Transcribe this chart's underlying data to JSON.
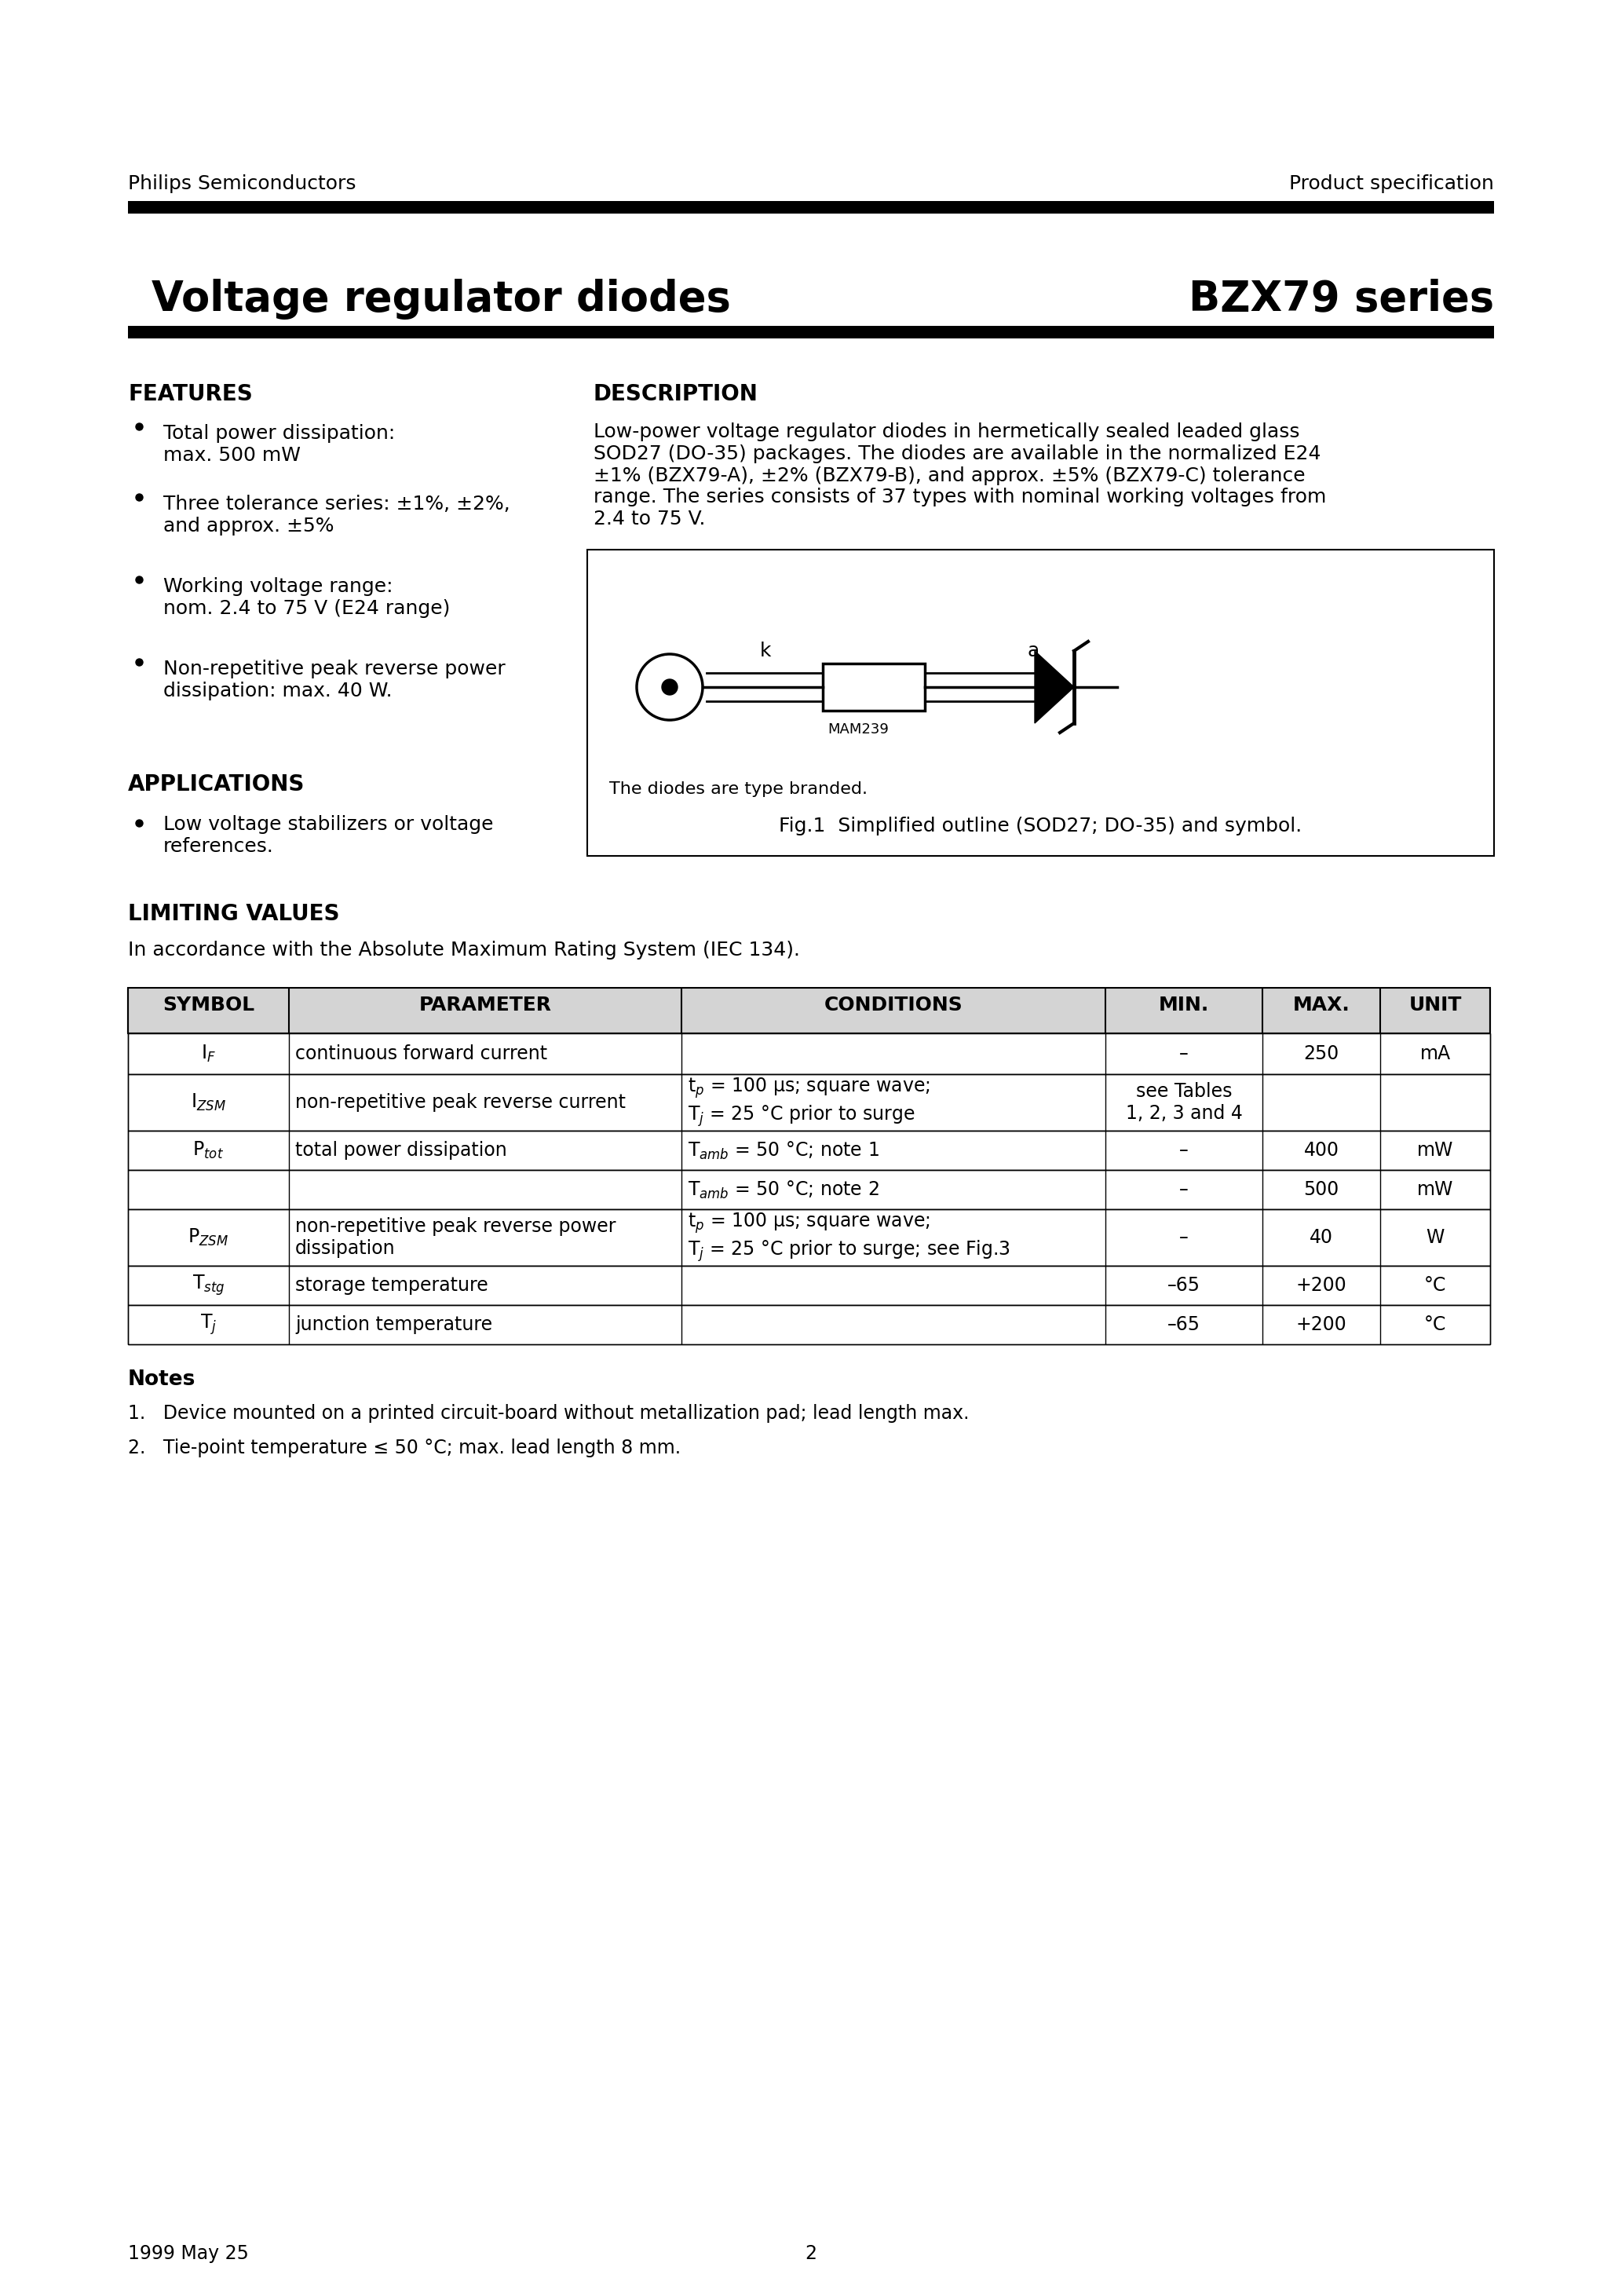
{
  "header_left": "Philips Semiconductors",
  "header_right": "Product specification",
  "page_title_left": "Voltage regulator diodes",
  "page_title_right": "BZX79 series",
  "features_title": "FEATURES",
  "feat1": "Total power dissipation:\nmax. 500 mW",
  "feat2": "Three tolerance series: ±1%, ±2%,\nand approx. ±5%",
  "feat3": "Working voltage range:\nnom. 2.4 to 75 V (E24 range)",
  "feat4": "Non-repetitive peak reverse power\ndissipation: max. 40 W.",
  "apps_title": "APPLICATIONS",
  "app1": "Low voltage stabilizers or voltage\nreferences.",
  "desc_title": "DESCRIPTION",
  "desc_text": "Low-power voltage regulator diodes in hermetically sealed leaded glass\nSOD27 (DO-35) packages. The diodes are available in the normalized E24\n±1% (BZX79-A), ±2% (BZX79-B), and approx. ±5% (BZX79-C) tolerance\nrange. The series consists of 37 types with nominal working voltages from\n2.4 to 75 V.",
  "fig_note": "The diodes are type branded.",
  "fig_caption": "Fig.1  Simplified outline (SOD27; DO-35) and symbol.",
  "lv_title": "LIMITING VALUES",
  "lv_sub": "In accordance with the Absolute Maximum Rating System (IEC 134).",
  "notes_title": "Notes",
  "note1": "1.   Device mounted on a printed circuit-board without metallization pad; lead length max.",
  "note2": "2.   Tie-point temperature ≤ 50 °C; max. lead length 8 mm.",
  "footer_left": "1999 May 25",
  "footer_page": "2",
  "sym_IF": "I$_F$",
  "sym_IZSM": "I$_{ZSM}$",
  "sym_Ptot": "P$_{tot}$",
  "sym_PZSM": "P$_{ZSM}$",
  "sym_Tstg": "T$_{stg}$",
  "sym_Tj": "T$_j$",
  "cond_tp": "t$_p$ = 100 μs; square wave;",
  "cond_Tj25": "T$_j$ = 25 °C prior to surge",
  "cond_Tamb1": "T$_{amb}$ = 50 °C; note 1",
  "cond_Tamb2": "T$_{amb}$ = 50 °C; note 2",
  "cond_Tj25fig": "T$_j$ = 25 °C prior to surge; see Fig.3",
  "tbl_col_widths": [
    205,
    500,
    540,
    200,
    150,
    140
  ]
}
